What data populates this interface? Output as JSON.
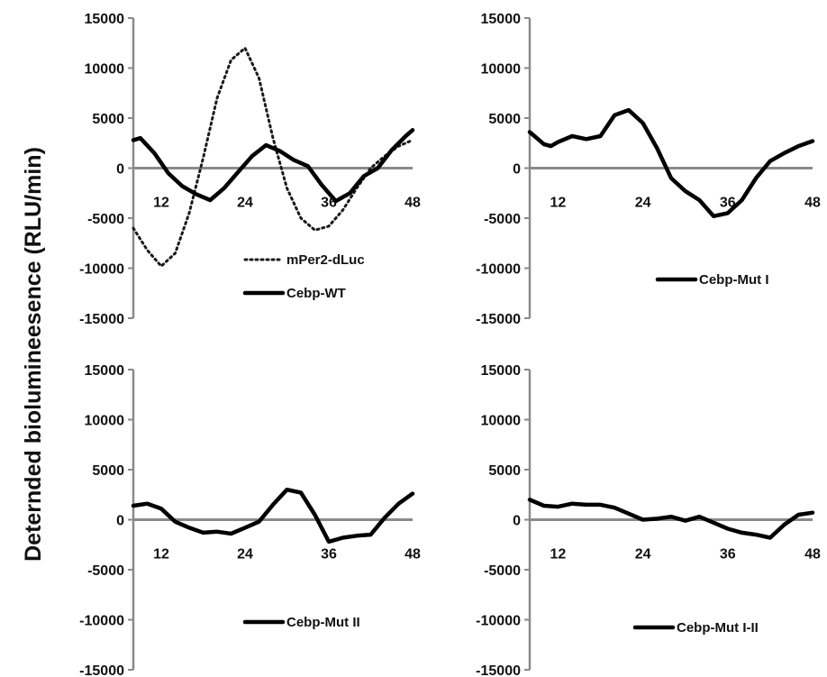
{
  "ylabel": "Deternded biolumineesence  (RLU/min)",
  "chart_data": [
    {
      "type": "line",
      "panel": "top-left",
      "xlim": [
        8,
        48
      ],
      "ylim": [
        -15000,
        15000
      ],
      "x_ticks": [
        "12",
        "24",
        "36",
        "48"
      ],
      "y_ticks": [
        "15000",
        "10000",
        "5000",
        "0",
        "-5000",
        "-10000",
        "-15000"
      ],
      "legend_position": "lower-center",
      "series": [
        {
          "name": "mPer2-dLuc",
          "style": "dotted",
          "color": "#1a1a1a",
          "x": [
            8,
            10,
            12,
            14,
            16,
            18,
            20,
            22,
            24,
            26,
            28,
            30,
            32,
            34,
            36,
            38,
            40,
            42,
            44,
            46,
            48
          ],
          "y": [
            -6000,
            -8200,
            -9800,
            -8500,
            -4500,
            1000,
            7000,
            10800,
            12000,
            9000,
            3000,
            -2000,
            -5000,
            -6200,
            -5800,
            -4200,
            -2000,
            0,
            1200,
            2200,
            2800
          ]
        },
        {
          "name": "Cebp-WT",
          "style": "solid",
          "color": "#000000",
          "x": [
            8,
            9,
            11,
            13,
            15,
            17,
            19,
            21,
            23,
            25,
            27,
            29,
            31,
            33,
            35,
            37,
            39,
            41,
            43,
            45,
            47,
            48
          ],
          "y": [
            2800,
            3000,
            1500,
            -500,
            -1800,
            -2600,
            -3200,
            -2000,
            -400,
            1200,
            2300,
            1700,
            800,
            200,
            -1700,
            -3300,
            -2500,
            -800,
            0,
            1800,
            3200,
            3800
          ]
        }
      ]
    },
    {
      "type": "line",
      "panel": "top-right",
      "xlim": [
        8,
        48
      ],
      "ylim": [
        -15000,
        15000
      ],
      "x_ticks": [
        "12",
        "24",
        "36",
        "48"
      ],
      "y_ticks": [
        "15000",
        "10000",
        "5000",
        "0",
        "-5000",
        "-10000",
        "-15000"
      ],
      "legend_position": "lower-center",
      "series": [
        {
          "name": "Cebp-Mut I",
          "style": "solid",
          "color": "#000000",
          "x": [
            8,
            9,
            10,
            11,
            12,
            14,
            16,
            18,
            20,
            22,
            24,
            26,
            28,
            30,
            32,
            34,
            36,
            38,
            40,
            42,
            44,
            46,
            48
          ],
          "y": [
            3600,
            3000,
            2400,
            2200,
            2600,
            3200,
            2900,
            3200,
            5300,
            5800,
            4500,
            2000,
            -1000,
            -2300,
            -3200,
            -4800,
            -4500,
            -3200,
            -1000,
            700,
            1500,
            2200,
            2700
          ]
        }
      ]
    },
    {
      "type": "line",
      "panel": "bottom-left",
      "xlim": [
        8,
        48
      ],
      "ylim": [
        -15000,
        15000
      ],
      "x_ticks": [
        "12",
        "24",
        "36",
        "48"
      ],
      "y_ticks": [
        "15000",
        "10000",
        "5000",
        "0",
        "-5000",
        "-10000",
        "-15000"
      ],
      "legend_position": "lower-center",
      "series": [
        {
          "name": "Cebp-Mut II",
          "style": "solid",
          "color": "#000000",
          "x": [
            8,
            10,
            12,
            14,
            16,
            18,
            20,
            22,
            24,
            26,
            28,
            30,
            32,
            34,
            36,
            38,
            40,
            42,
            44,
            46,
            48
          ],
          "y": [
            1400,
            1600,
            1100,
            -200,
            -800,
            -1300,
            -1200,
            -1400,
            -800,
            -200,
            1500,
            3000,
            2700,
            500,
            -2200,
            -1800,
            -1600,
            -1500,
            200,
            1600,
            2600
          ]
        }
      ]
    },
    {
      "type": "line",
      "panel": "bottom-right",
      "xlim": [
        8,
        48
      ],
      "ylim": [
        -15000,
        15000
      ],
      "x_ticks": [
        "12",
        "24",
        "36",
        "48"
      ],
      "y_ticks": [
        "15000",
        "10000",
        "5000",
        "0",
        "-5000",
        "-10000",
        "-15000"
      ],
      "legend_position": "lower-center",
      "series": [
        {
          "name": "Cebp-Mut I-II",
          "style": "solid",
          "color": "#000000",
          "x": [
            8,
            10,
            12,
            14,
            16,
            18,
            20,
            22,
            24,
            26,
            28,
            30,
            32,
            34,
            36,
            38,
            40,
            42,
            44,
            46,
            48
          ],
          "y": [
            2000,
            1400,
            1300,
            1600,
            1500,
            1500,
            1200,
            600,
            0,
            100,
            300,
            -100,
            300,
            -300,
            -900,
            -1300,
            -1500,
            -1800,
            -500,
            500,
            700
          ]
        }
      ]
    }
  ]
}
